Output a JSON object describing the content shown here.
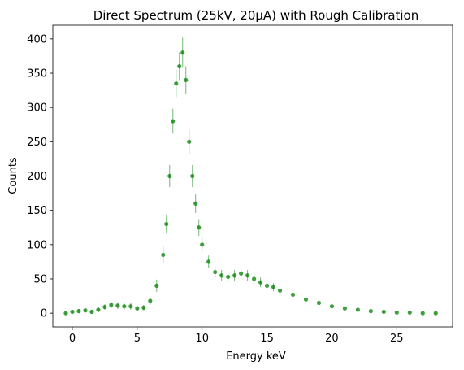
{
  "chart_data": {
    "type": "scatter",
    "title": "Direct Spectrum (25kV, 20μA) with Rough Calibration",
    "xlabel": "Energy keV",
    "ylabel": "Counts",
    "xlim": [
      -1.5,
      29.3
    ],
    "ylim": [
      -20,
      420
    ],
    "xticks": [
      0,
      5,
      10,
      15,
      20,
      25
    ],
    "yticks": [
      0,
      50,
      100,
      150,
      200,
      250,
      300,
      350,
      400
    ],
    "grid": false,
    "legend": "none",
    "marker": "dot with vertical error bars",
    "series": [
      {
        "color": "#008000",
        "x": [
          -0.5,
          0.0,
          0.5,
          1.0,
          1.5,
          2.0,
          2.5,
          3.0,
          3.5,
          4.0,
          4.5,
          5.0,
          5.5,
          6.0,
          6.5,
          7.0,
          7.25,
          7.5,
          7.75,
          8.0,
          8.25,
          8.5,
          8.75,
          9.0,
          9.25,
          9.5,
          9.75,
          10.0,
          10.5,
          11.0,
          11.5,
          12.0,
          12.5,
          13.0,
          13.5,
          14.0,
          14.5,
          15.0,
          15.5,
          16.0,
          17.0,
          18.0,
          19.0,
          20.0,
          21.0,
          22.0,
          23.0,
          24.0,
          25.0,
          26.0,
          27.0,
          28.0
        ],
        "y": [
          0,
          2,
          3,
          4,
          2,
          5,
          9,
          12,
          11,
          10,
          10,
          7,
          8,
          18,
          40,
          85,
          130,
          200,
          280,
          335,
          360,
          380,
          340,
          250,
          200,
          160,
          125,
          100,
          75,
          60,
          55,
          53,
          55,
          58,
          55,
          50,
          45,
          40,
          38,
          33,
          27,
          20,
          15,
          10,
          7,
          5,
          3,
          2,
          1,
          1,
          0,
          0
        ],
        "errors": [
          1,
          3,
          3,
          3,
          3,
          4,
          4,
          5,
          5,
          5,
          5,
          4,
          4,
          6,
          9,
          12,
          14,
          16,
          18,
          20,
          20,
          22,
          20,
          18,
          16,
          14,
          12,
          10,
          9,
          8,
          8,
          8,
          8,
          9,
          8,
          8,
          7,
          7,
          6,
          6,
          5,
          5,
          4,
          4,
          3,
          3,
          2,
          2,
          1,
          1,
          1,
          1
        ]
      }
    ]
  }
}
